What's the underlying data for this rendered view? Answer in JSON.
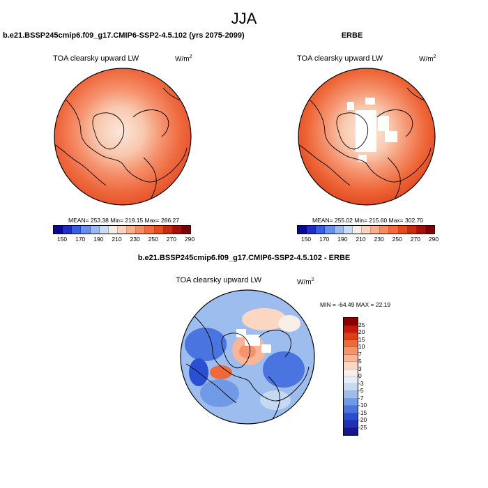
{
  "figure": {
    "title": "JJA",
    "left_title": "b.e21.BSSP245cmip6.f09_g17.CMIP6-SSP2-4.5.102 (yrs 2075-2099)",
    "right_title": "ERBE",
    "diff_title": "b.e21.BSSP245cmip6.f09_g17.CMIP6-SSP2-4.5.102 - ERBE"
  },
  "panels": {
    "model": {
      "label": "TOA clearsky upward LW",
      "units": "W/m",
      "units_sup": "2",
      "stats": "MEAN= 253.38   Min= 219.15   Max= 286.27"
    },
    "obs": {
      "label": "TOA clearsky upward LW",
      "units": "W/m",
      "units_sup": "2",
      "stats": "MEAN= 255.02   Min= 215.60   Max= 302.70"
    },
    "diff": {
      "label": "TOA clearsky upward LW",
      "units": "W/m",
      "units_sup": "2",
      "stats": "MIN = -64.49 MAX =  22.19"
    }
  },
  "colorbars": {
    "abs_ticks": [
      "150",
      "170",
      "190",
      "210",
      "230",
      "250",
      "270",
      "290"
    ],
    "abs_colors": [
      "#0a0a8c",
      "#1c2fc0",
      "#3a5ee0",
      "#6b8eea",
      "#9cb8ef",
      "#c9dcf5",
      "#f6ece6",
      "#fbd3bd",
      "#f8ad8c",
      "#f58a63",
      "#ef6a40",
      "#e54a23",
      "#cc2a10",
      "#a31108",
      "#7a0303"
    ],
    "diff_ticks": [
      "25",
      "20",
      "15",
      "10",
      "7",
      "5",
      "3",
      "0",
      "-3",
      "-5",
      "-7",
      "-10",
      "-15",
      "-20",
      "-25"
    ],
    "diff_colors": [
      "#8b0000",
      "#c8170a",
      "#e03d14",
      "#ef6a3a",
      "#f5946a",
      "#f8b597",
      "#fbd6c2",
      "#f8eee8",
      "#e4eef8",
      "#c5d9f3",
      "#9cbdee",
      "#7099e6",
      "#4a74df",
      "#2a4fd2",
      "#1f2fb6",
      "#16178f"
    ]
  }
}
